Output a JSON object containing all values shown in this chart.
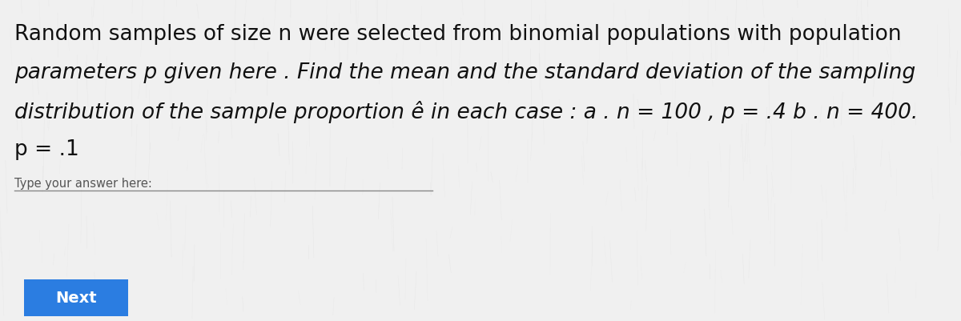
{
  "background_color": "#f0f0f0",
  "main_text_line1": "Random samples of size n were selected from binomial populations with population",
  "main_text_line2": "parameters p given here . Find the mean and the standard deviation of the sampling",
  "main_text_line3": "distribution of the sample proportion ê in each case : a . n = 100 , p = .4 b . n = 400.",
  "main_text_line4": "p = .1",
  "answer_label": "Type your answer here:",
  "button_text": "Next",
  "button_color": "#2b7de1",
  "button_text_color": "#ffffff",
  "text_color": "#111111",
  "answer_label_color": "#555555",
  "font_size_main": 19.0,
  "font_size_label": 10.5,
  "font_size_button": 14,
  "line1_italic": false,
  "line2_italic": true,
  "line3_italic": true,
  "line4_italic": false
}
